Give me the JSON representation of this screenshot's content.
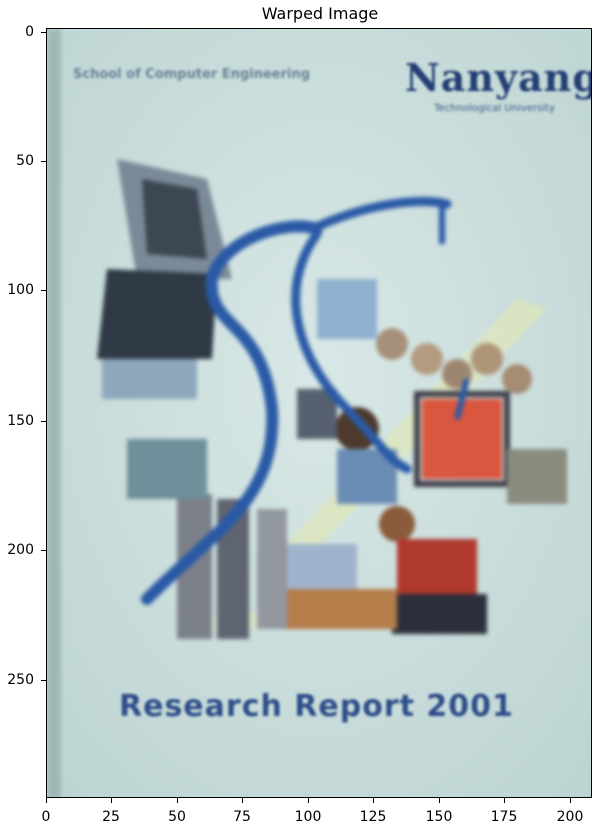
{
  "figure": {
    "title": "Warped Image",
    "y_ticks": [
      "0",
      "50",
      "100",
      "150",
      "200",
      "250"
    ],
    "x_ticks": [
      "0",
      "25",
      "50",
      "75",
      "100",
      "125",
      "150",
      "175",
      "200"
    ]
  },
  "cover": {
    "header_left": "School of Computer Engineering",
    "brand": "Nanyang",
    "brand_sub": "Technological University",
    "report_title": "Research Report 2001"
  },
  "colors": {
    "background": "#c9dedd",
    "title_text": "#2f4e8a",
    "swoosh": "#2a5aa6",
    "monitor_red": "#d9563f"
  }
}
